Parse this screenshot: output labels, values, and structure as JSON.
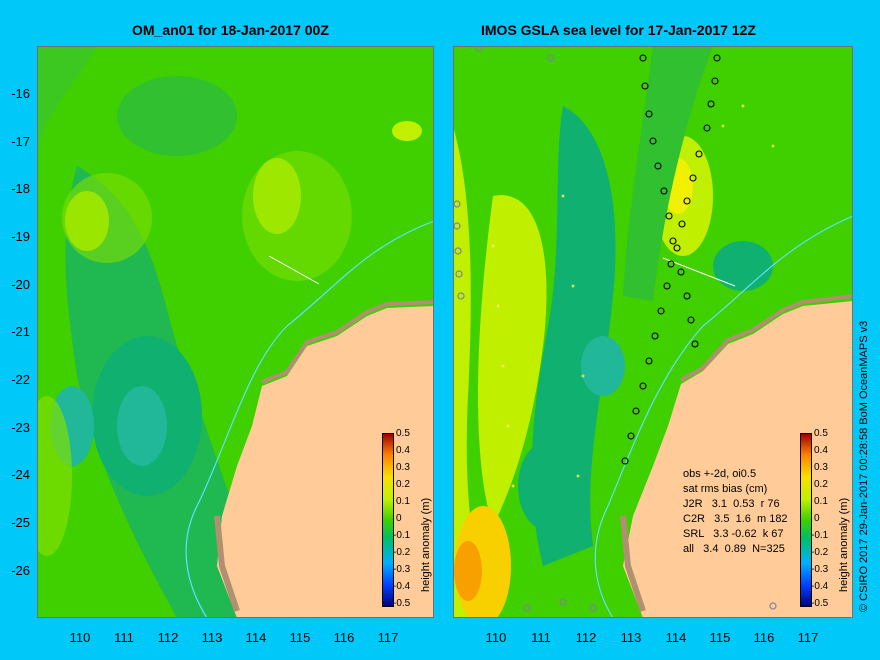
{
  "left_title": "OM_an01 for 18-Jan-2017 00Z",
  "right_title": "IMOS GSLA sea level  for 17-Jan-2017 12Z",
  "y_ticks": [
    "-16",
    "-17",
    "-18",
    "-19",
    "-20",
    "-21",
    "-22",
    "-23",
    "-24",
    "-25",
    "-26"
  ],
  "x_ticks_left": [
    "110",
    "111",
    "112",
    "113",
    "114",
    "115",
    "116",
    "117"
  ],
  "x_ticks_right": [
    "110",
    "111",
    "112",
    "113",
    "114",
    "115",
    "116",
    "117"
  ],
  "colorbar": {
    "title": "height anomaly (m)",
    "labels": [
      "0.5",
      "0.4",
      "0.3",
      "0.2",
      "0.1",
      "0",
      "-0.1",
      "-0.2",
      "-0.3",
      "-0.4",
      "-0.5"
    ],
    "range": [
      -0.5,
      0.5
    ]
  },
  "stats": {
    "l1": "obs +-2d, oi0.5",
    "l2": "sat rms bias (cm)",
    "l3": "J2R   3.1  0.53  r 76",
    "l4": "C2R   3.5  1.6  m 182",
    "l5": "SRL   3.3 -0.62  k 67",
    "l6": "all   3.4  0.89  N=325"
  },
  "credit": "© CSIRO 2017   29-Jan-2017 00:28:58 BoM OceanMAPS v3",
  "colors": {
    "background": "#00c8f8",
    "land": "#ffcc99",
    "base": "#40d000",
    "low": "#00b060",
    "high": "#c0f000",
    "peak": "#f8a000"
  }
}
